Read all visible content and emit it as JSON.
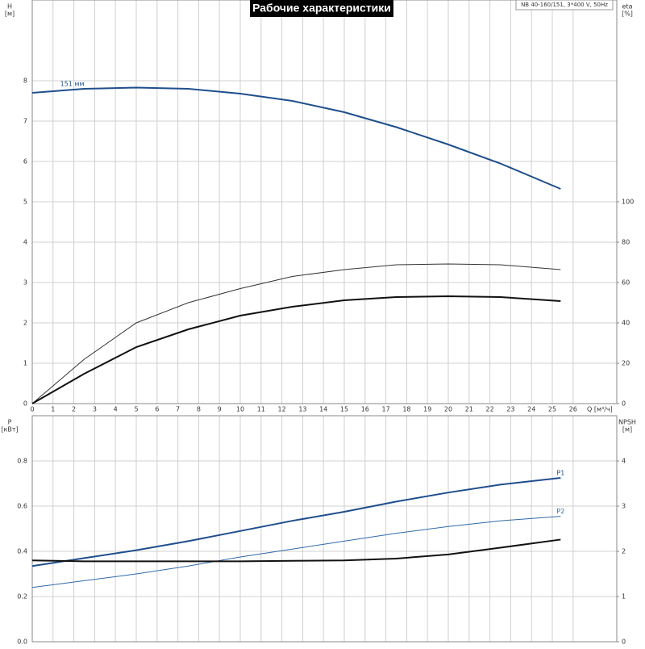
{
  "chart_data": [
    {
      "type": "line",
      "title": "Рабочие характеристики",
      "subtitle": "NB 40-160/151, 3*400 V, 50Hz",
      "xlabel": "Q [м³/ч]",
      "ylabel": "H",
      "ylabel_unit": "[м]",
      "y2label": "eta",
      "y2label_unit": "[%]",
      "xlim": [
        0,
        28.1
      ],
      "xticks": [
        0,
        1,
        2,
        3,
        4,
        5,
        6,
        7,
        8,
        9,
        10,
        11,
        12,
        13,
        14,
        15,
        16,
        17,
        18,
        19,
        20,
        21,
        22,
        23,
        24,
        25,
        26
      ],
      "ylim": [
        0,
        10
      ],
      "yticks": [
        0,
        1,
        2,
        3,
        4,
        5,
        6,
        7,
        8
      ],
      "y2lim": [
        0,
        200
      ],
      "y2ticks": [
        0,
        20,
        40,
        60,
        80,
        100
      ],
      "grid": true,
      "x": [
        0,
        2.5,
        5,
        7.5,
        10,
        12.5,
        15,
        17.5,
        20,
        22.5,
        25.4
      ],
      "series": [
        {
          "name": "151 мм",
          "label_at": "start",
          "color": "#1f4e8c",
          "width": 2,
          "values": [
            7.7,
            7.8,
            7.83,
            7.8,
            7.68,
            7.5,
            7.22,
            6.85,
            6.42,
            5.95,
            5.32
          ]
        },
        {
          "axis": "y2",
          "color": "#333333",
          "width": 1,
          "values": [
            0,
            22,
            40,
            50,
            57,
            63,
            66.4,
            68.8,
            69.2,
            68.8,
            66.4
          ]
        },
        {
          "axis": "y2",
          "color": "#111111",
          "width": 2,
          "values": [
            0,
            14.8,
            28,
            36.8,
            43.6,
            48,
            51.2,
            52.8,
            53.2,
            52.8,
            50.8
          ]
        }
      ]
    },
    {
      "type": "line",
      "ylabel": "P",
      "ylabel_unit": "[кВт]",
      "y2label": "NPSH",
      "y2label_unit": "[м]",
      "xlim": [
        0,
        28.1
      ],
      "ylim": [
        0,
        1
      ],
      "yticks": [
        {
          "value": 0,
          "label": "0.0"
        },
        0.2,
        0.4,
        0.6,
        0.8
      ],
      "y2lim": [
        0,
        5
      ],
      "y2ticks": [
        0,
        1,
        2,
        3,
        4
      ],
      "grid": true,
      "x": [
        0,
        2.5,
        5,
        7.5,
        10,
        12.5,
        15,
        17.5,
        20,
        22.5,
        25.4
      ],
      "series": [
        {
          "name": "P1",
          "label_at": "end",
          "color": "#1f4e8c",
          "width": 2,
          "values": [
            0.335,
            0.37,
            0.405,
            0.445,
            0.49,
            0.535,
            0.575,
            0.62,
            0.66,
            0.695,
            0.725
          ]
        },
        {
          "name": "P2",
          "label_at": "end",
          "color": "#2f6aa8",
          "width": 1,
          "values": [
            0.24,
            0.27,
            0.3,
            0.335,
            0.375,
            0.41,
            0.445,
            0.48,
            0.51,
            0.535,
            0.555
          ]
        },
        {
          "axis": "y2",
          "color": "#111111",
          "width": 2,
          "values": [
            1.8,
            1.78,
            1.78,
            1.78,
            1.78,
            1.79,
            1.8,
            1.84,
            1.93,
            2.08,
            2.26
          ]
        }
      ]
    }
  ]
}
